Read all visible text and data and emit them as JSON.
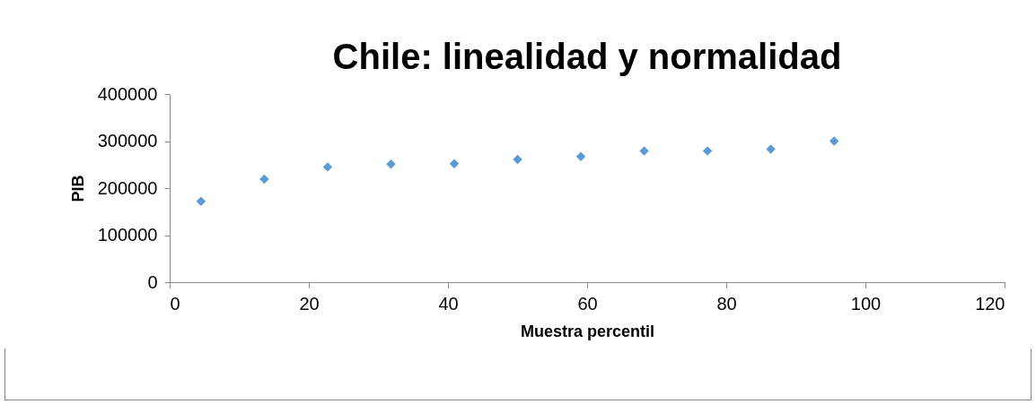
{
  "chart_data": {
    "type": "scatter",
    "title": "Chile: linealidad y normalidad",
    "xlabel": "Muestra percentil",
    "ylabel": "PIB",
    "x": [
      4.5,
      13.6,
      22.7,
      31.8,
      40.9,
      50,
      59.1,
      68.2,
      77.3,
      86.4,
      95.5
    ],
    "series": [
      {
        "color": "#5b9bd5",
        "values": [
          172000,
          219000,
          245000,
          251000,
          252000,
          261000,
          267000,
          279000,
          279000,
          283000,
          300000
        ]
      }
    ],
    "xlim": [
      0,
      120
    ],
    "xticks": [
      0,
      20,
      40,
      60,
      80,
      100,
      120
    ],
    "ylim": [
      0,
      400000
    ],
    "yticks": [
      0,
      100000,
      200000,
      300000,
      400000
    ],
    "marker": "diamond",
    "grid": false
  }
}
